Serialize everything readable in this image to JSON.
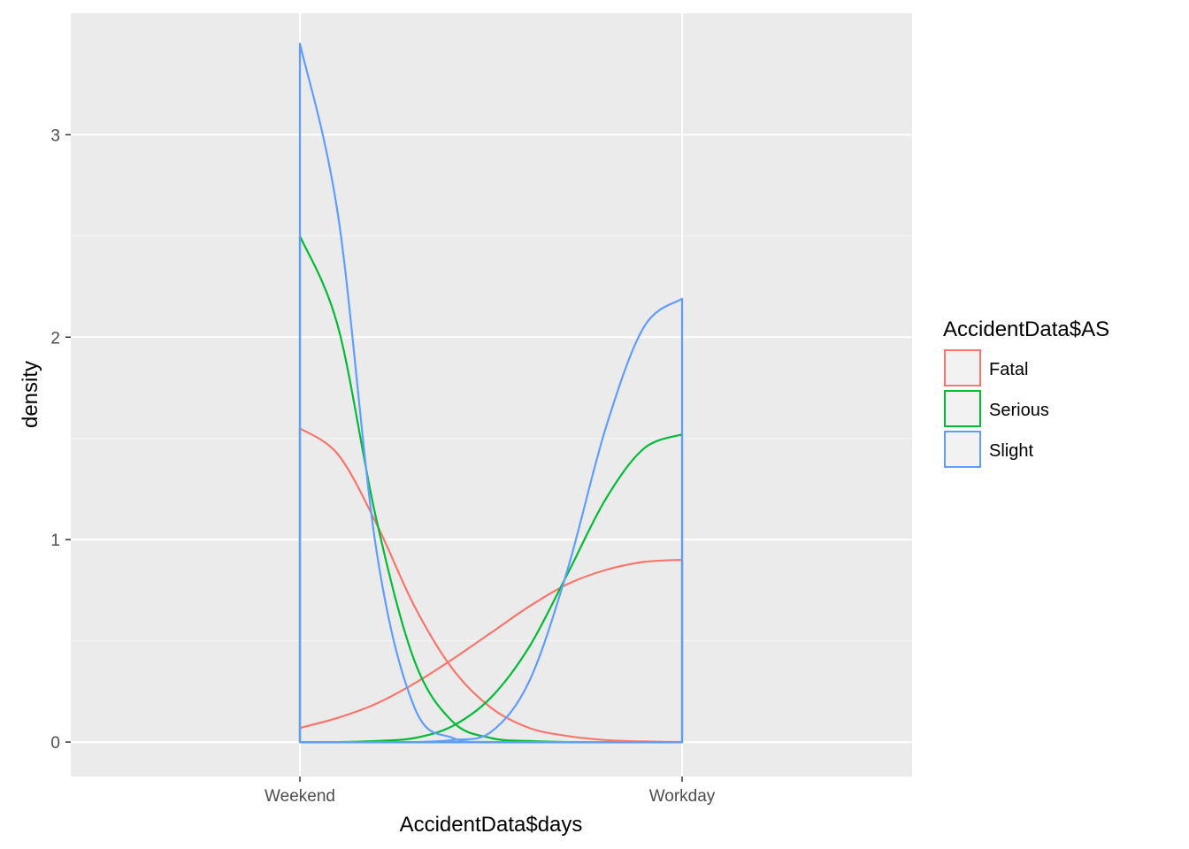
{
  "chart_data": {
    "type": "density",
    "xlabel": "AccidentData$days",
    "ylabel": "density",
    "x_categories": [
      "Weekend",
      "Workday"
    ],
    "ylim": [
      -0.17,
      3.6
    ],
    "y_ticks": [
      0,
      1,
      2,
      3
    ],
    "y_tick_labels": [
      "0",
      "1",
      "2",
      "3"
    ],
    "grid": true,
    "legend": {
      "title": "AccidentData$AS",
      "position": "right"
    },
    "series": [
      {
        "name": "Fatal",
        "color": "#F8766D",
        "x": [
          0.0,
          0.1,
          0.2,
          0.3,
          0.4,
          0.5,
          0.6,
          0.7,
          0.8,
          0.9,
          1.0
        ],
        "y": [
          1.55,
          1.42,
          1.08,
          0.67,
          0.36,
          0.17,
          0.07,
          0.03,
          0.01,
          0.003,
          0.0
        ],
        "y2": [
          0.07,
          0.12,
          0.19,
          0.29,
          0.41,
          0.54,
          0.67,
          0.78,
          0.85,
          0.89,
          0.9
        ]
      },
      {
        "name": "Serious",
        "color": "#00BA38",
        "x": [
          0.0,
          0.1,
          0.2,
          0.3,
          0.4,
          0.5,
          0.6,
          0.7,
          0.8,
          0.9,
          1.0
        ],
        "y": [
          2.5,
          2.05,
          1.1,
          0.4,
          0.1,
          0.02,
          0.005,
          0.0,
          0.0,
          0.0,
          0.0
        ],
        "y2": [
          0.0,
          0.0,
          0.005,
          0.02,
          0.08,
          0.22,
          0.47,
          0.83,
          1.2,
          1.45,
          1.52
        ]
      },
      {
        "name": "Slight",
        "color": "#619CFF",
        "x": [
          0.0,
          0.1,
          0.2,
          0.3,
          0.4,
          0.5,
          0.6,
          0.7,
          0.8,
          0.9,
          1.0
        ],
        "y": [
          3.45,
          2.6,
          0.95,
          0.17,
          0.02,
          0.0,
          0.0,
          0.0,
          0.0,
          0.0,
          0.0
        ],
        "y2": [
          0.0,
          0.0,
          0.0,
          0.0,
          0.01,
          0.05,
          0.3,
          0.85,
          1.55,
          2.05,
          2.19
        ]
      }
    ]
  }
}
